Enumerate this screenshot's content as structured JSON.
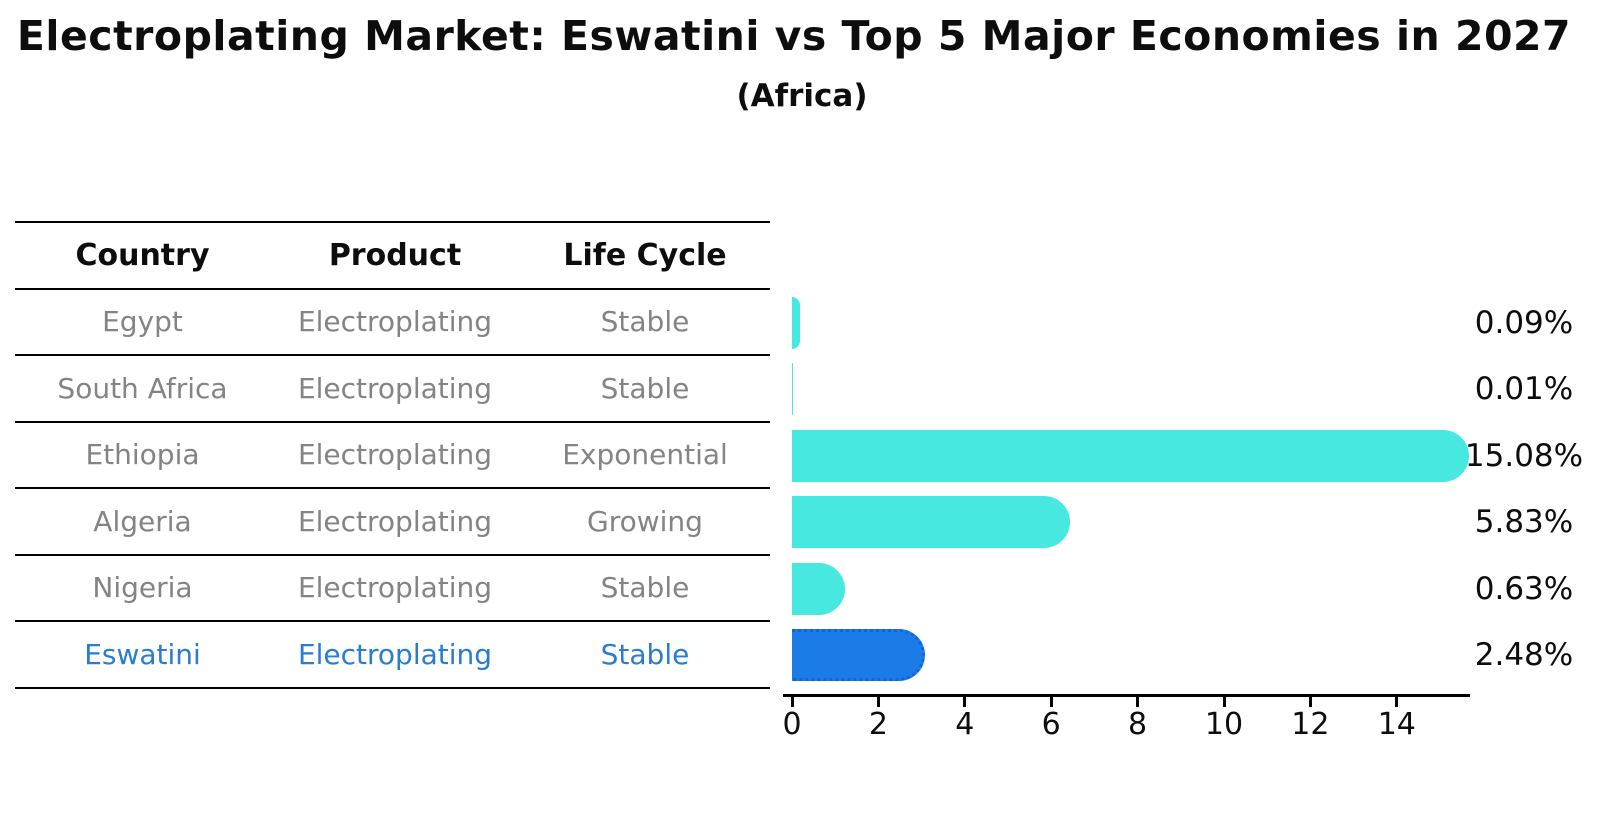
{
  "title": "Electroplating Market: Eswatini vs Top 5 Major Economies in 2027",
  "subtitle": "(Africa)",
  "table": {
    "headers": [
      "Country",
      "Product",
      "Life Cycle"
    ],
    "rows": [
      {
        "country": "Egypt",
        "product": "Electroplating",
        "life_cycle": "Stable",
        "highlight": false
      },
      {
        "country": "South Africa",
        "product": "Electroplating",
        "life_cycle": "Stable",
        "highlight": false
      },
      {
        "country": "Ethiopia",
        "product": "Electroplating",
        "life_cycle": "Exponential",
        "highlight": false
      },
      {
        "country": "Algeria",
        "product": "Electroplating",
        "life_cycle": "Growing",
        "highlight": false
      },
      {
        "country": "Nigeria",
        "product": "Electroplating",
        "life_cycle": "Stable",
        "highlight": false
      },
      {
        "country": "Eswatini",
        "product": "Electroplating",
        "life_cycle": "Stable",
        "highlight": true
      }
    ]
  },
  "chart_data": {
    "type": "bar",
    "orientation": "horizontal",
    "title": "Electroplating Market: Eswatini vs Top 5 Major Economies in 2027",
    "subtitle": "(Africa)",
    "categories": [
      "Egypt",
      "South Africa",
      "Ethiopia",
      "Algeria",
      "Nigeria",
      "Eswatini"
    ],
    "values": [
      0.09,
      0.01,
      15.08,
      5.83,
      0.63,
      2.48
    ],
    "value_labels": [
      "0.09%",
      "0.01%",
      "15.08%",
      "5.83%",
      "0.63%",
      "2.48%"
    ],
    "value_suffix": "%",
    "xlabel": "",
    "ylabel": "",
    "x_ticks": [
      0,
      2,
      4,
      6,
      8,
      10,
      12,
      14
    ],
    "xlim": [
      0,
      15.7
    ],
    "grid": false,
    "legend": "none",
    "bar_color": "#46e8e0",
    "highlight_bar_color": "#1b7ce8",
    "highlight_index": 5,
    "highlight_text_color": "#2a7cd0"
  }
}
